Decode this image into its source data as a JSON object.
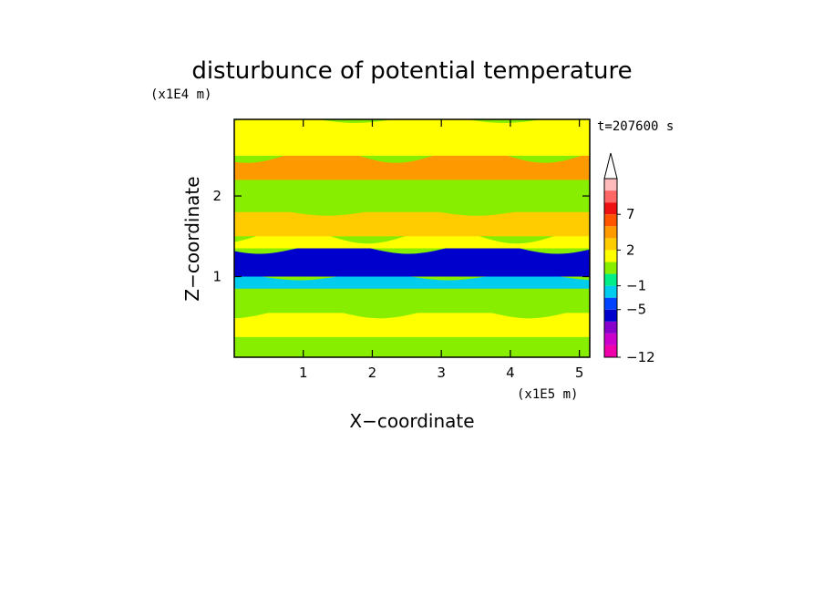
{
  "chart_data": {
    "type": "heatmap",
    "title": "disturbunce of potential temperature",
    "time_label": "t=207600 s",
    "xlabel": "X−coordinate",
    "ylabel": "Z−coordinate",
    "x_unit_label": "(x1E5 m)",
    "y_unit_label": "(x1E4 m)",
    "xlim": [
      0,
      5.15
    ],
    "ylim": [
      0,
      2.95
    ],
    "x_ticks": [
      1,
      2,
      3,
      4,
      5
    ],
    "x_tick_labels": [
      "1",
      "2",
      "3",
      "4",
      "5"
    ],
    "y_ticks": [
      1,
      2
    ],
    "y_tick_labels": [
      "1",
      "2"
    ],
    "grid": false,
    "colorbar": {
      "position": "right",
      "levels": [
        -12,
        -5,
        -1,
        2,
        7
      ],
      "level_labels": [
        "−12",
        "−5",
        "−1",
        "2",
        "7"
      ],
      "colors": [
        "#ee00aa",
        "#cc00cc",
        "#8800cc",
        "#0000cc",
        "#0044ff",
        "#00ccee",
        "#00ee88",
        "#88ee00",
        "#ffff00",
        "#ffcc00",
        "#ff9900",
        "#ff5500",
        "#ee1111",
        "#ff6666",
        "#ffbbbb"
      ],
      "extend_top": true
    },
    "bands": [
      {
        "z_min": 0.0,
        "z_max": 0.25,
        "value": 0.5
      },
      {
        "z_min": 0.25,
        "z_max": 0.55,
        "value": 1.5
      },
      {
        "z_min": 0.55,
        "z_max": 0.85,
        "value": 0.8
      },
      {
        "z_min": 0.85,
        "z_max": 1.0,
        "value": -2.0
      },
      {
        "z_min": 1.0,
        "z_max": 1.35,
        "value": -4.5
      },
      {
        "z_min": 1.35,
        "z_max": 1.5,
        "value": 1.0
      },
      {
        "z_min": 1.5,
        "z_max": 1.8,
        "value": 2.0
      },
      {
        "z_min": 1.8,
        "z_max": 2.2,
        "value": 0.5
      },
      {
        "z_min": 2.2,
        "z_max": 2.5,
        "value": 3.0
      },
      {
        "z_min": 2.5,
        "z_max": 2.95,
        "value": 1.5
      }
    ]
  }
}
